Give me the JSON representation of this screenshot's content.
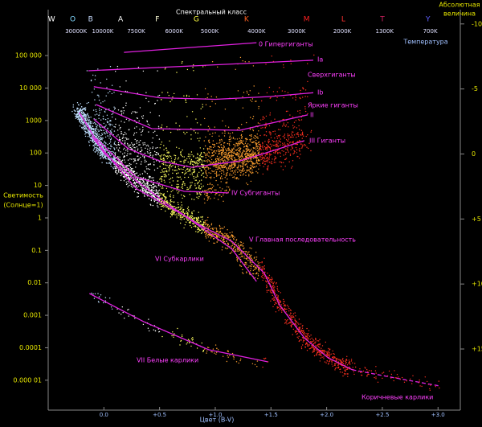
{
  "chart_data": {
    "type": "hr-diagram",
    "title": "Спектральный класс",
    "xlabel": "Цвет (B-V)",
    "ylabel": [
      "Светимость",
      "(Солнце=1)"
    ],
    "y2label": [
      "Абсолютная",
      "величина"
    ],
    "temperature_label": "Температура",
    "log_y": true,
    "xlim": [
      -0.5,
      3.2
    ],
    "xticks": [
      {
        "value": 0,
        "label": "0.0"
      },
      {
        "value": 0.5,
        "label": "+0.5"
      },
      {
        "value": 1,
        "label": "+1.0"
      },
      {
        "value": 1.5,
        "label": "+1.5"
      },
      {
        "value": 2,
        "label": "+2.0"
      },
      {
        "value": 2.5,
        "label": "+2.5"
      },
      {
        "value": 3,
        "label": "+3.0"
      }
    ],
    "ylim": [
      1.2e-06,
      2600000
    ],
    "yticks": [
      {
        "value": 100000,
        "label": "100 000"
      },
      {
        "value": 10000,
        "label": "10 000"
      },
      1000,
      100,
      10,
      1,
      0.1,
      0.01,
      0.001,
      0.0001,
      {
        "value": 1e-05,
        "label": "0.000 01"
      }
    ],
    "y2lim": [
      -11.1,
      19.7
    ],
    "y2ticks": [
      -10,
      -5,
      0,
      {
        "value": 5,
        "label": "+5"
      },
      {
        "value": 10,
        "label": "+10"
      },
      {
        "value": 15,
        "label": "+15"
      }
    ],
    "spectral_classes": [
      {
        "label": "W",
        "x": -0.47,
        "color": "#ffffff"
      },
      {
        "label": "O",
        "x": -0.28,
        "color": "#80d8ff"
      },
      {
        "label": "B",
        "x": -0.12,
        "color": "#c8dcff"
      },
      {
        "label": "A",
        "x": 0.15,
        "color": "#ffffff"
      },
      {
        "label": "F",
        "x": 0.48,
        "color": "#ffffd8"
      },
      {
        "label": "G",
        "x": 0.83,
        "color": "#ffff40"
      },
      {
        "label": "K",
        "x": 1.28,
        "color": "#ff6020"
      },
      {
        "label": "M",
        "x": 1.82,
        "color": "#ff2020"
      },
      {
        "label": "L",
        "x": 2.15,
        "color": "#ff3030"
      },
      {
        "label": "T",
        "x": 2.5,
        "color": "#d02060"
      },
      {
        "label": "Y",
        "x": 2.91,
        "color": "#6060ff"
      }
    ],
    "temperature_ticks": [
      {
        "value": -0.25,
        "label": "30000K"
      },
      {
        "value": -0.01,
        "label": "10000K"
      },
      {
        "value": 0.29,
        "label": "7500K"
      },
      {
        "value": 0.63,
        "label": "6000K"
      },
      {
        "value": 0.95,
        "label": "5000K"
      },
      {
        "value": 1.37,
        "label": "4000K"
      },
      {
        "value": 1.73,
        "label": "3000K"
      },
      {
        "value": 2.14,
        "label": "2000K"
      },
      {
        "value": 2.52,
        "label": "1300K"
      },
      {
        "value": 2.93,
        "label": "700K"
      }
    ],
    "series": [
      {
        "name": "0  Гипергиганты",
        "color": "#e020e0",
        "x": [
          0.18,
          1.37
        ],
        "values": [
          126000,
          250000
        ]
      },
      {
        "name": "Ia",
        "description": "Сверхгиганты",
        "color": "#e020e0",
        "x": [
          -0.14,
          1.88
        ],
        "values": [
          34000,
          72000
        ]
      },
      {
        "name": "Ib",
        "description": "Яркие гиганты",
        "color": "#e020e0",
        "x": [
          -0.09,
          0.5,
          1.0,
          1.5,
          1.88
        ],
        "values": [
          11000,
          5000,
          4500,
          5500,
          7200
        ]
      },
      {
        "name": "II",
        "color": "#e020e0",
        "x": [
          -0.07,
          0.43,
          1.22,
          1.83
        ],
        "values": [
          3100,
          560,
          500,
          1500
        ]
      },
      {
        "name": "III  Гиганты",
        "color": "#e020e0",
        "x": [
          -0.09,
          0.22,
          0.5,
          0.79,
          1.22,
          1.51,
          1.8
        ],
        "values": [
          1100,
          135,
          57,
          36,
          57,
          115,
          240
        ]
      },
      {
        "name": "IV  Субгиганты",
        "color": "#e020e0",
        "x": [
          -0.07,
          0.29,
          0.72,
          1.12
        ],
        "values": [
          280,
          18,
          6.6,
          5.9
        ]
      },
      {
        "name": "V  Главная последовательность",
        "color": "#e020e0",
        "x": [
          -0.22,
          0,
          0.29,
          0.58,
          0.86,
          1.15,
          1.44,
          1.58,
          1.8,
          2.01,
          2.23
        ],
        "values": [
          1750,
          100,
          14,
          2.5,
          0.6,
          0.19,
          0.02,
          0.002,
          0.0002,
          5e-05,
          2.1e-05
        ]
      },
      {
        "name": "Коричневые карлики",
        "color": "#e020e0",
        "dashed": true,
        "x": [
          2.23,
          2.6,
          3.02
        ],
        "values": [
          2.1e-05,
          1.2e-05,
          6.6e-06
        ]
      },
      {
        "name": "VI  Субкарлики",
        "color": "#e020e0",
        "x": [
          -0.11,
          0.29,
          0.72,
          1.15,
          1.37
        ],
        "values": [
          320,
          8,
          1.2,
          0.11,
          0.011
        ]
      },
      {
        "name": "VII  Белые карлики",
        "color": "#e020e0",
        "x": [
          -0.13,
          0.36,
          0.94,
          1.47
        ],
        "values": [
          0.0047,
          0.00063,
          8.7e-05,
          3.7e-05
        ]
      }
    ]
  }
}
